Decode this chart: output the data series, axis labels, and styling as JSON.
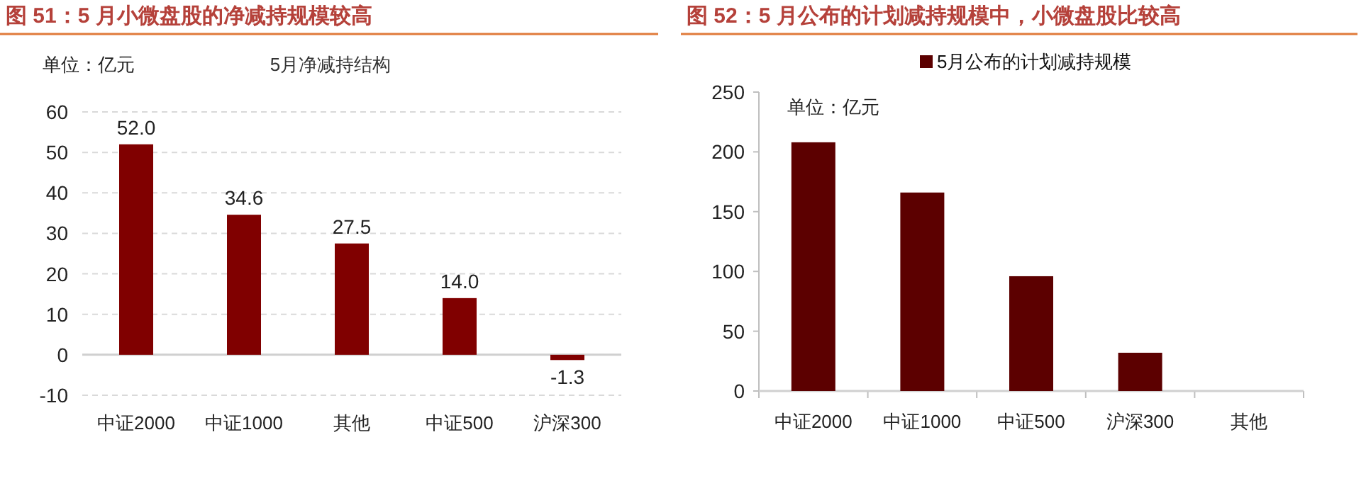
{
  "chart_data": [
    {
      "type": "bar",
      "title": "图 51：5 月小微盘股的净减持规模较高",
      "subtitle": "5月净减持结构",
      "annotations": [
        "单位：亿元"
      ],
      "categories": [
        "中证2000",
        "中证1000",
        "其他",
        "中证500",
        "沪深300"
      ],
      "series": [
        {
          "color": "#800000",
          "values": [
            52.0,
            34.6,
            27.5,
            14.0,
            -1.3
          ],
          "value_labels": [
            "52.0",
            "34.6",
            "27.5",
            "14.0",
            "-1.3"
          ]
        }
      ],
      "ylim": [
        -10,
        60
      ],
      "yticks": [
        -10,
        0,
        10,
        20,
        30,
        40,
        50,
        60
      ],
      "grid": "y",
      "legend": false
    },
    {
      "type": "bar",
      "title": "图 52：5 月公布的计划减持规模中，小微盘股比较高",
      "annotations": [
        "单位：亿元"
      ],
      "categories": [
        "中证2000",
        "中证1000",
        "中证500",
        "沪深300",
        "其他"
      ],
      "series": [
        {
          "name": "5月公布的计划减持规模",
          "color": "#5c0000",
          "values": [
            208,
            166,
            96,
            32,
            0
          ]
        }
      ],
      "ylim": [
        0,
        250
      ],
      "yticks": [
        0,
        50,
        100,
        150,
        200,
        250
      ],
      "grid": false,
      "legend": "top"
    }
  ]
}
